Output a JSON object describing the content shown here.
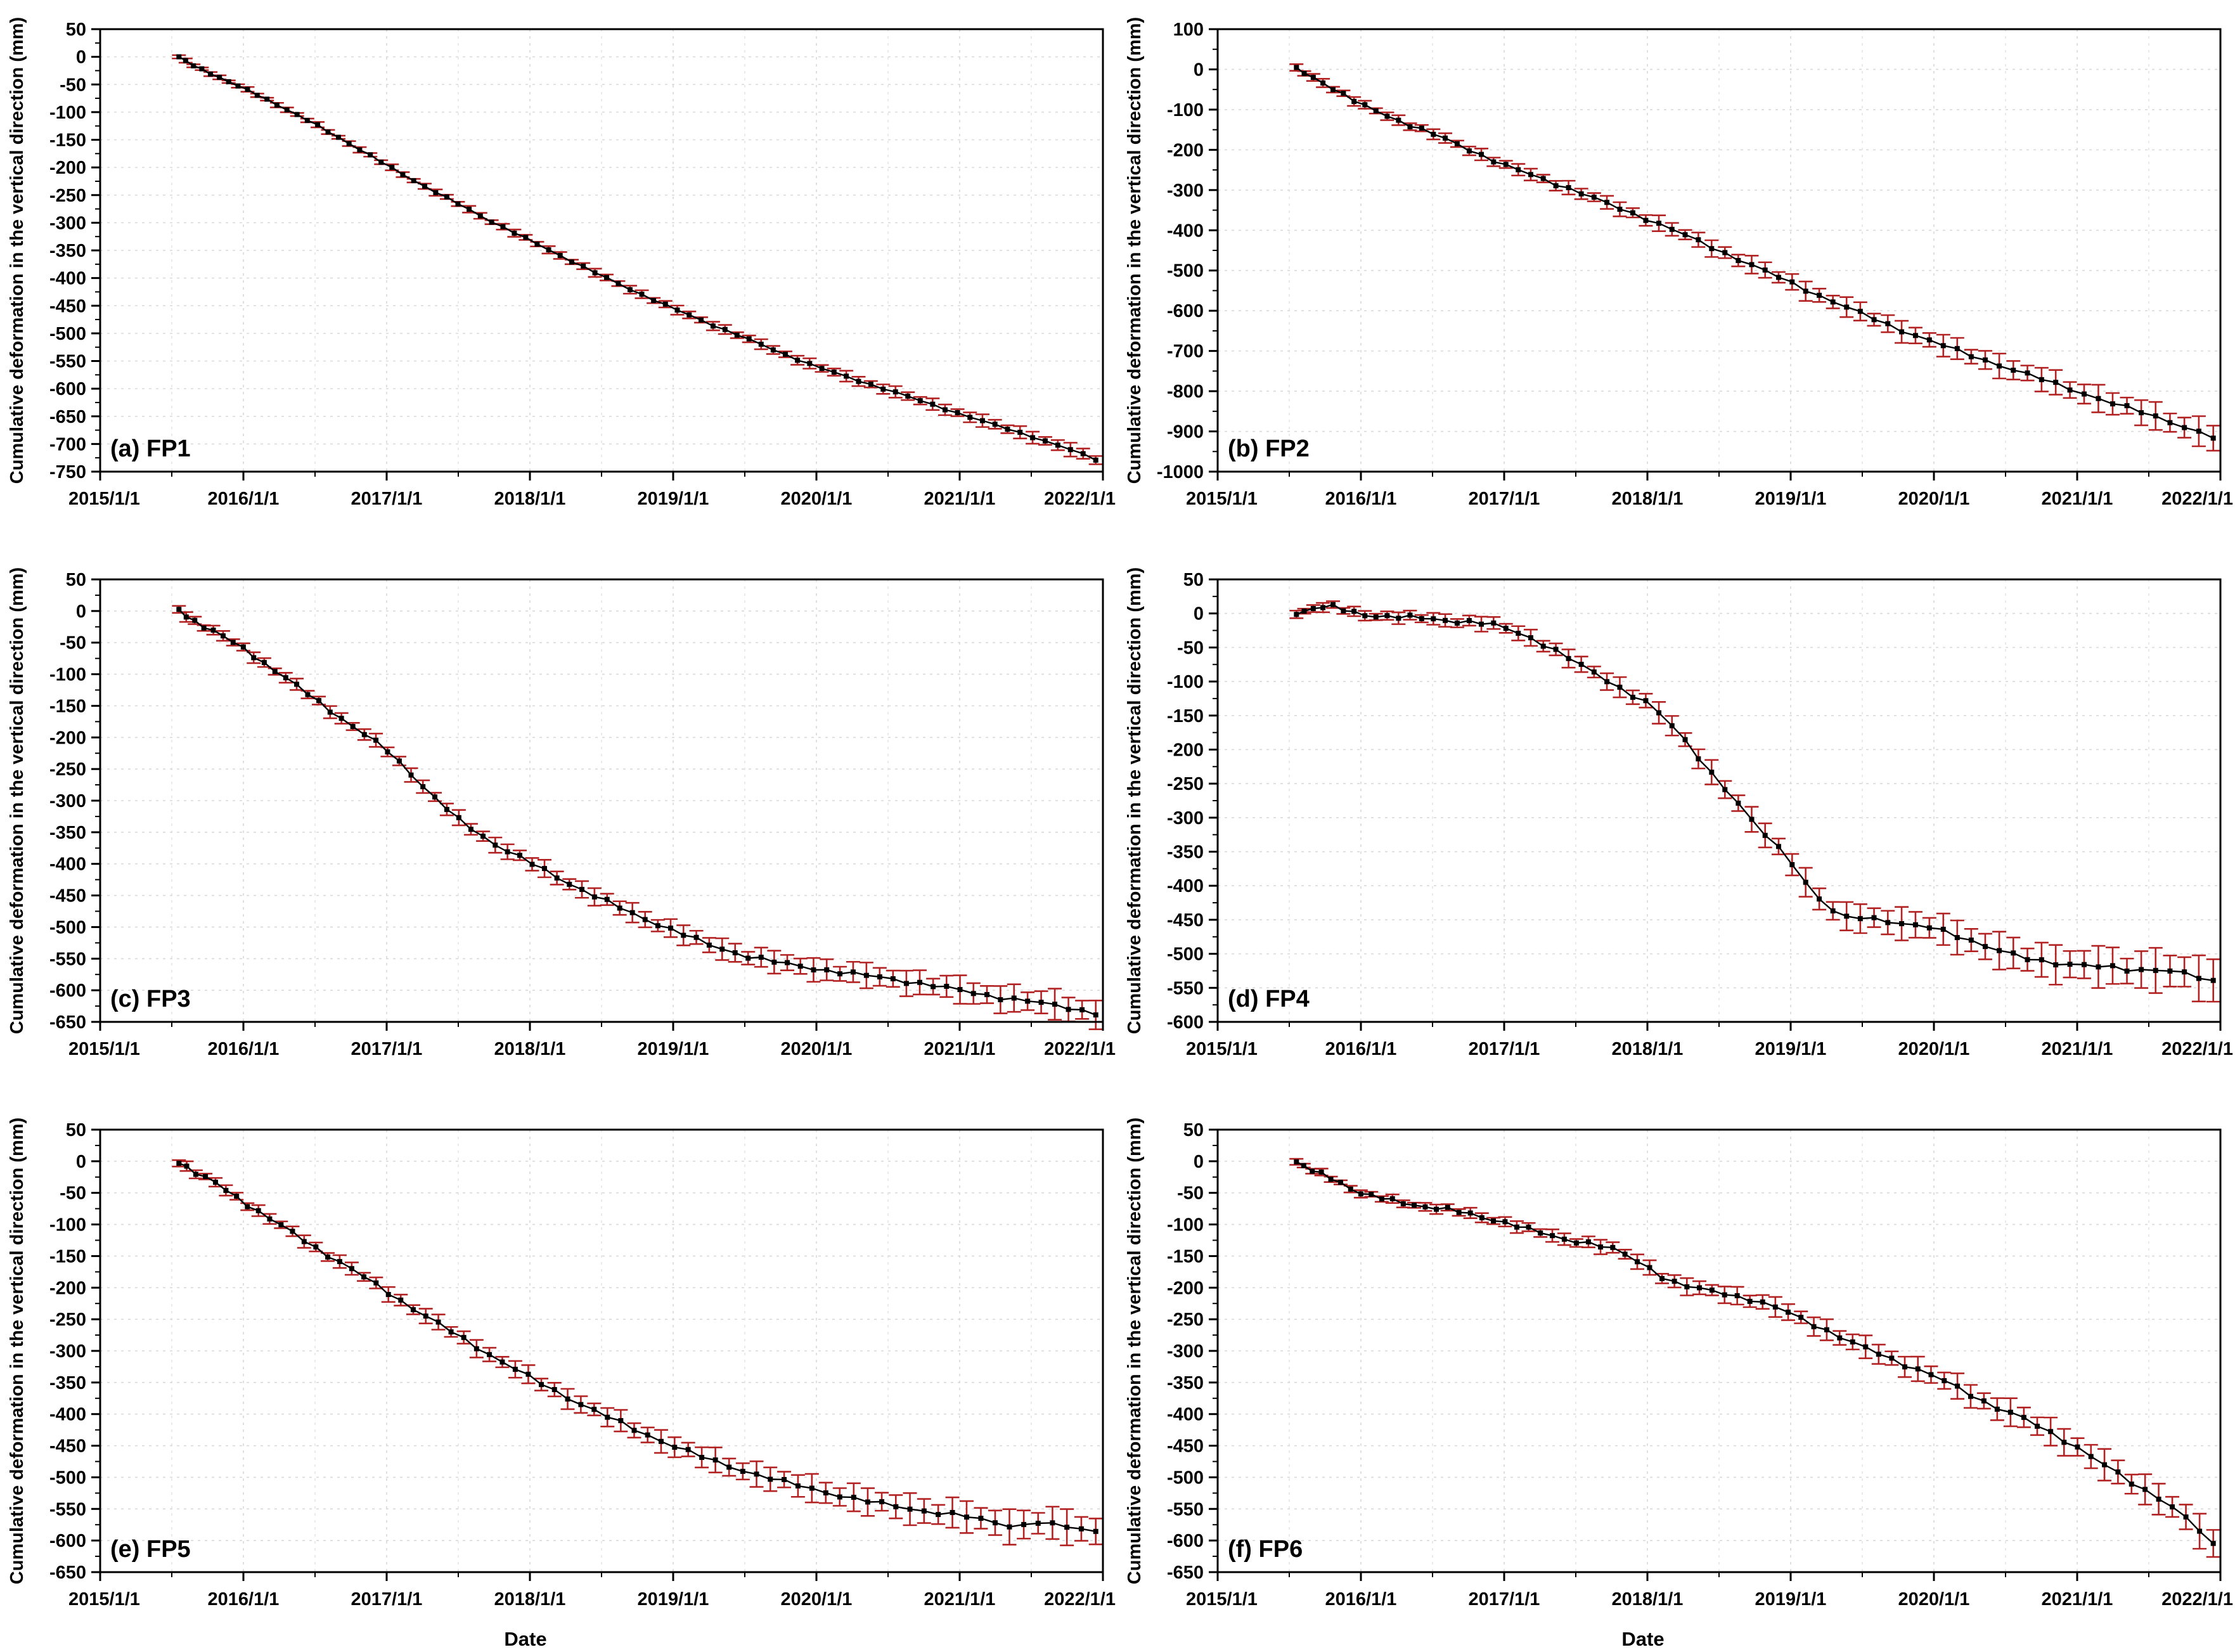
{
  "figure": {
    "background": "#ffffff",
    "axis_color": "#000000",
    "grid_color": "#d9d9d9",
    "minor_grid_color": "#e5e5e5",
    "marker_color": "#000000",
    "line_color": "#000000",
    "errorbar_color": "#b22222",
    "ylabel": "Cumulative deformation in the vertical direction (mm)",
    "xlabel": "Date",
    "xticks": [
      "2015/1/1",
      "2016/1/1",
      "2017/1/1",
      "2018/1/1",
      "2019/1/1",
      "2020/1/1",
      "2021/1/1",
      "2022/1/1"
    ],
    "xlim": [
      2015,
      2022
    ]
  },
  "chart_data": [
    {
      "type": "line-scatter-errorbar",
      "panel_label": "(a) FP1",
      "site": "FP1",
      "row": 0,
      "col": 0,
      "show_xlabel": false,
      "ylim": [
        -750,
        50
      ],
      "yticks": [
        50,
        0,
        -50,
        -100,
        -150,
        -200,
        -250,
        -300,
        -350,
        -400,
        -450,
        -500,
        -550,
        -600,
        -650,
        -700,
        -750
      ],
      "yminor_step": 25,
      "n": 82,
      "jitter": 1.5,
      "err": [
        3,
        10
      ],
      "knots": [
        [
          2015.55,
          0
        ],
        [
          2015.62,
          -12
        ],
        [
          2015.7,
          -22
        ],
        [
          2015.8,
          -33
        ],
        [
          2016.0,
          -57
        ],
        [
          2016.25,
          -88
        ],
        [
          2016.5,
          -122
        ],
        [
          2016.75,
          -158
        ],
        [
          2017.0,
          -196
        ],
        [
          2017.25,
          -232
        ],
        [
          2017.5,
          -266
        ],
        [
          2017.75,
          -300
        ],
        [
          2018.0,
          -332
        ],
        [
          2018.25,
          -364
        ],
        [
          2018.5,
          -396
        ],
        [
          2018.75,
          -426
        ],
        [
          2019.0,
          -455
        ],
        [
          2019.25,
          -482
        ],
        [
          2019.5,
          -508
        ],
        [
          2019.75,
          -535
        ],
        [
          2020.0,
          -560
        ],
        [
          2020.25,
          -582
        ],
        [
          2020.5,
          -602
        ],
        [
          2020.75,
          -624
        ],
        [
          2021.0,
          -645
        ],
        [
          2021.25,
          -666
        ],
        [
          2021.5,
          -686
        ],
        [
          2021.75,
          -708
        ],
        [
          2021.95,
          -728
        ]
      ]
    },
    {
      "type": "line-scatter-errorbar",
      "panel_label": "(b) FP2",
      "site": "FP2",
      "row": 0,
      "col": 1,
      "show_xlabel": false,
      "ylim": [
        -1000,
        100
      ],
      "yticks": [
        100,
        0,
        -100,
        -200,
        -300,
        -400,
        -500,
        -600,
        -700,
        -800,
        -900,
        -1000
      ],
      "yminor_step": 50,
      "n": 72,
      "jitter": 4,
      "err": [
        8,
        30
      ],
      "knots": [
        [
          2015.55,
          0
        ],
        [
          2015.65,
          -18
        ],
        [
          2015.8,
          -45
        ],
        [
          2016.0,
          -88
        ],
        [
          2016.25,
          -125
        ],
        [
          2016.5,
          -160
        ],
        [
          2016.75,
          -198
        ],
        [
          2017.0,
          -238
        ],
        [
          2017.25,
          -270
        ],
        [
          2017.5,
          -302
        ],
        [
          2017.75,
          -338
        ],
        [
          2018.0,
          -372
        ],
        [
          2018.25,
          -410
        ],
        [
          2018.5,
          -450
        ],
        [
          2018.75,
          -490
        ],
        [
          2019.0,
          -530
        ],
        [
          2019.25,
          -570
        ],
        [
          2019.5,
          -608
        ],
        [
          2019.75,
          -645
        ],
        [
          2020.0,
          -678
        ],
        [
          2020.25,
          -710
        ],
        [
          2020.5,
          -740
        ],
        [
          2020.75,
          -770
        ],
        [
          2021.0,
          -800
        ],
        [
          2021.25,
          -830
        ],
        [
          2021.5,
          -858
        ],
        [
          2021.75,
          -888
        ],
        [
          2021.95,
          -915
        ]
      ]
    },
    {
      "type": "line-scatter-errorbar",
      "panel_label": "(c) FP3",
      "site": "FP3",
      "row": 1,
      "col": 0,
      "show_xlabel": false,
      "ylim": [
        -650,
        50
      ],
      "yticks": [
        50,
        0,
        -50,
        -100,
        -150,
        -200,
        -250,
        -300,
        -350,
        -400,
        -450,
        -500,
        -550,
        -600,
        -650
      ],
      "yminor_step": 25,
      "n": 76,
      "jitter": 3,
      "err": [
        6,
        20
      ],
      "knots": [
        [
          2015.55,
          0
        ],
        [
          2015.65,
          -15
        ],
        [
          2015.8,
          -32
        ],
        [
          2016.0,
          -60
        ],
        [
          2016.25,
          -98
        ],
        [
          2016.5,
          -140
        ],
        [
          2016.75,
          -180
        ],
        [
          2017.0,
          -220
        ],
        [
          2017.15,
          -252
        ],
        [
          2017.3,
          -288
        ],
        [
          2017.5,
          -330
        ],
        [
          2017.75,
          -368
        ],
        [
          2018.0,
          -398
        ],
        [
          2018.25,
          -428
        ],
        [
          2018.5,
          -456
        ],
        [
          2018.75,
          -482
        ],
        [
          2019.0,
          -505
        ],
        [
          2019.25,
          -528
        ],
        [
          2019.5,
          -545
        ],
        [
          2019.75,
          -557
        ],
        [
          2020.0,
          -566
        ],
        [
          2020.25,
          -574
        ],
        [
          2020.5,
          -581
        ],
        [
          2020.75,
          -590
        ],
        [
          2021.0,
          -600
        ],
        [
          2021.25,
          -610
        ],
        [
          2021.5,
          -618
        ],
        [
          2021.75,
          -627
        ],
        [
          2021.95,
          -636
        ]
      ]
    },
    {
      "type": "line-scatter-errorbar",
      "panel_label": "(d) FP4",
      "site": "FP4",
      "row": 1,
      "col": 1,
      "show_xlabel": false,
      "ylim": [
        -600,
        50
      ],
      "yticks": [
        50,
        0,
        -50,
        -100,
        -150,
        -200,
        -250,
        -300,
        -350,
        -400,
        -450,
        -500,
        -550,
        -600
      ],
      "yminor_step": 25,
      "n": 72,
      "jitter": 3,
      "err": [
        5,
        28
      ],
      "knots": [
        [
          2015.55,
          0
        ],
        [
          2015.62,
          5
        ],
        [
          2015.7,
          10
        ],
        [
          2015.78,
          12
        ],
        [
          2015.85,
          6
        ],
        [
          2016.0,
          -2
        ],
        [
          2016.2,
          -4
        ],
        [
          2016.4,
          -7
        ],
        [
          2016.6,
          -10
        ],
        [
          2016.8,
          -13
        ],
        [
          2016.95,
          -18
        ],
        [
          2017.1,
          -28
        ],
        [
          2017.25,
          -42
        ],
        [
          2017.4,
          -60
        ],
        [
          2017.55,
          -78
        ],
        [
          2017.7,
          -95
        ],
        [
          2017.85,
          -115
        ],
        [
          2018.0,
          -132
        ],
        [
          2018.15,
          -160
        ],
        [
          2018.3,
          -195
        ],
        [
          2018.45,
          -235
        ],
        [
          2018.6,
          -272
        ],
        [
          2018.75,
          -310
        ],
        [
          2018.9,
          -340
        ],
        [
          2019.0,
          -362
        ],
        [
          2019.1,
          -395
        ],
        [
          2019.2,
          -420
        ],
        [
          2019.35,
          -448
        ],
        [
          2019.5,
          -445
        ],
        [
          2019.65,
          -450
        ],
        [
          2019.8,
          -458
        ],
        [
          2020.0,
          -462
        ],
        [
          2020.2,
          -475
        ],
        [
          2020.4,
          -492
        ],
        [
          2020.6,
          -505
        ],
        [
          2020.8,
          -512
        ],
        [
          2021.0,
          -516
        ],
        [
          2021.2,
          -520
        ],
        [
          2021.4,
          -524
        ],
        [
          2021.6,
          -522
        ],
        [
          2021.8,
          -532
        ],
        [
          2021.95,
          -542
        ]
      ]
    },
    {
      "type": "line-scatter-errorbar",
      "panel_label": "(e) FP5",
      "site": "FP5",
      "row": 2,
      "col": 0,
      "show_xlabel": true,
      "ylim": [
        -650,
        50
      ],
      "yticks": [
        50,
        0,
        -50,
        -100,
        -150,
        -200,
        -250,
        -300,
        -350,
        -400,
        -450,
        -500,
        -550,
        -600,
        -650
      ],
      "yminor_step": 25,
      "n": 72,
      "jitter": 3,
      "err": [
        6,
        24
      ],
      "knots": [
        [
          2015.55,
          0
        ],
        [
          2015.65,
          -16
        ],
        [
          2015.8,
          -34
        ],
        [
          2016.0,
          -64
        ],
        [
          2016.25,
          -100
        ],
        [
          2016.5,
          -136
        ],
        [
          2016.75,
          -170
        ],
        [
          2017.0,
          -206
        ],
        [
          2017.25,
          -242
        ],
        [
          2017.5,
          -276
        ],
        [
          2017.75,
          -310
        ],
        [
          2018.0,
          -342
        ],
        [
          2018.25,
          -372
        ],
        [
          2018.5,
          -400
        ],
        [
          2018.75,
          -426
        ],
        [
          2019.0,
          -450
        ],
        [
          2019.25,
          -472
        ],
        [
          2019.5,
          -490
        ],
        [
          2019.75,
          -506
        ],
        [
          2020.0,
          -520
        ],
        [
          2020.25,
          -533
        ],
        [
          2020.5,
          -544
        ],
        [
          2020.75,
          -553
        ],
        [
          2021.0,
          -560
        ],
        [
          2021.25,
          -572
        ],
        [
          2021.4,
          -578
        ],
        [
          2021.55,
          -570
        ],
        [
          2021.7,
          -578
        ],
        [
          2021.85,
          -582
        ],
        [
          2021.95,
          -586
        ]
      ]
    },
    {
      "type": "line-scatter-errorbar",
      "panel_label": "(f) FP6",
      "site": "FP6",
      "row": 2,
      "col": 1,
      "show_xlabel": true,
      "ylim": [
        -650,
        50
      ],
      "yticks": [
        50,
        0,
        -50,
        -100,
        -150,
        -200,
        -250,
        -300,
        -350,
        -400,
        -450,
        -500,
        -550,
        -600,
        -650
      ],
      "yminor_step": 25,
      "n": 76,
      "jitter": 3,
      "err": [
        4,
        22
      ],
      "knots": [
        [
          2015.55,
          0
        ],
        [
          2015.65,
          -14
        ],
        [
          2015.8,
          -28
        ],
        [
          2016.0,
          -50
        ],
        [
          2016.2,
          -62
        ],
        [
          2016.4,
          -70
        ],
        [
          2016.6,
          -76
        ],
        [
          2016.8,
          -86
        ],
        [
          2017.0,
          -96
        ],
        [
          2017.2,
          -110
        ],
        [
          2017.4,
          -122
        ],
        [
          2017.6,
          -130
        ],
        [
          2017.8,
          -142
        ],
        [
          2018.0,
          -166
        ],
        [
          2018.15,
          -190
        ],
        [
          2018.3,
          -200
        ],
        [
          2018.5,
          -206
        ],
        [
          2018.7,
          -218
        ],
        [
          2018.9,
          -232
        ],
        [
          2019.0,
          -240
        ],
        [
          2019.2,
          -262
        ],
        [
          2019.4,
          -285
        ],
        [
          2019.6,
          -302
        ],
        [
          2019.8,
          -322
        ],
        [
          2020.0,
          -340
        ],
        [
          2020.2,
          -362
        ],
        [
          2020.4,
          -386
        ],
        [
          2020.6,
          -404
        ],
        [
          2020.8,
          -428
        ],
        [
          2021.0,
          -452
        ],
        [
          2021.2,
          -482
        ],
        [
          2021.4,
          -512
        ],
        [
          2021.6,
          -535
        ],
        [
          2021.75,
          -562
        ],
        [
          2021.9,
          -595
        ],
        [
          2021.95,
          -608
        ]
      ]
    }
  ]
}
